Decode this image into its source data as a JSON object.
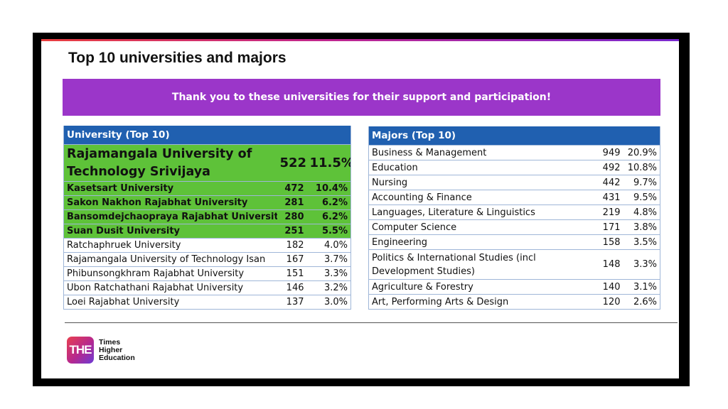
{
  "slide": {
    "title": "Top 10 universities and majors",
    "banner": "Thank you to these universities for their support and participation!"
  },
  "universities": {
    "header": "University (Top 10)",
    "rows": [
      {
        "name": "Rajamangala University of Technology Srivijaya",
        "count": "522",
        "pct": "11.5%"
      },
      {
        "name": "Kasetsart University",
        "count": "472",
        "pct": "10.4%"
      },
      {
        "name": "Sakon Nakhon Rajabhat University",
        "count": "281",
        "pct": "6.2%"
      },
      {
        "name": "Bansomdejchaopraya Rajabhat University",
        "count": "280",
        "pct": "6.2%"
      },
      {
        "name": "Suan Dusit University",
        "count": "251",
        "pct": "5.5%"
      },
      {
        "name": "Ratchaphruek University",
        "count": "182",
        "pct": "4.0%"
      },
      {
        "name": "Rajamangala University of Technology Isan",
        "count": "167",
        "pct": "3.7%"
      },
      {
        "name": "Phibunsongkhram Rajabhat University",
        "count": "151",
        "pct": "3.3%"
      },
      {
        "name": "Ubon Ratchathani Rajabhat University",
        "count": "146",
        "pct": "3.2%"
      },
      {
        "name": "Loei Rajabhat University",
        "count": "137",
        "pct": "3.0%"
      }
    ]
  },
  "majors": {
    "header": "Majors (Top 10)",
    "rows": [
      {
        "name": "Business & Management",
        "count": "949",
        "pct": "20.9%"
      },
      {
        "name": "Education",
        "count": "492",
        "pct": "10.8%"
      },
      {
        "name": "Nursing",
        "count": "442",
        "pct": "9.7%"
      },
      {
        "name": "Accounting & Finance",
        "count": "431",
        "pct": "9.5%"
      },
      {
        "name": "Languages, Literature & Linguistics",
        "count": "219",
        "pct": "4.8%"
      },
      {
        "name": "Computer Science",
        "count": "171",
        "pct": "3.8%"
      },
      {
        "name": "Engineering",
        "count": "158",
        "pct": "3.5%"
      },
      {
        "name": "Politics & International Studies (incl Development Studies)",
        "count": "148",
        "pct": "3.3%"
      },
      {
        "name": "Agriculture & Forestry",
        "count": "140",
        "pct": "3.1%"
      },
      {
        "name": "Art, Performing Arts & Design",
        "count": "120",
        "pct": "2.6%"
      }
    ]
  },
  "logo": {
    "mark": "THE",
    "line1": "Times",
    "line2": "Higher",
    "line3": "Education"
  },
  "colors": {
    "banner": "#9b36c9",
    "table_header": "#2060b0",
    "highlight": "#5ec239"
  }
}
